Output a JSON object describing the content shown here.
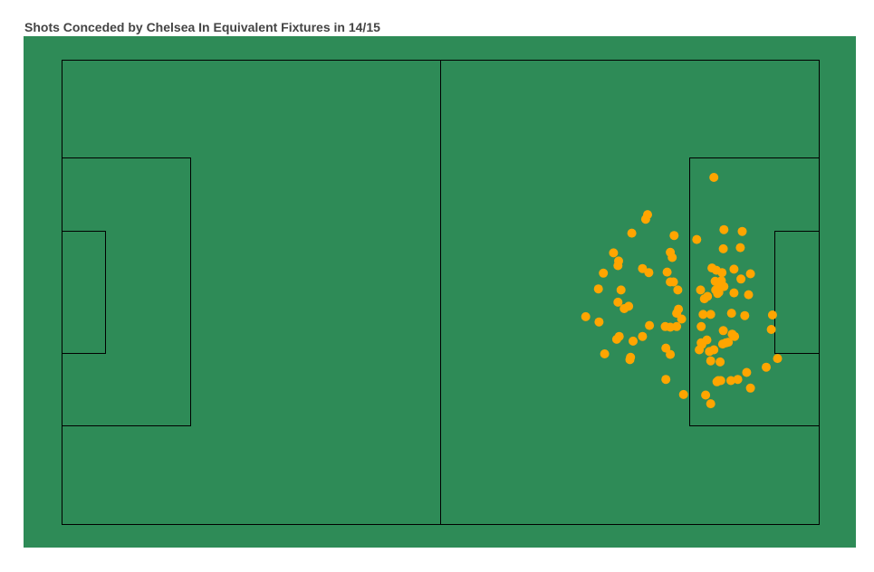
{
  "chart_data": {
    "type": "scatter",
    "title": "Shots Conceded by Chelsea In Equivalent Fixtures in 14/15",
    "xlabel": "",
    "ylabel": "",
    "xlim": [
      0,
      120
    ],
    "ylim": [
      0,
      80
    ],
    "grid": false,
    "legend": "none",
    "colors": {
      "pitch": "#2e8b57",
      "lines": "#000000",
      "shots": "#ffa500"
    },
    "series": [
      {
        "points": [
          [
            103.3,
            59.8
          ],
          [
            92.8,
            53.4
          ],
          [
            92.5,
            52.6
          ],
          [
            104.9,
            50.8
          ],
          [
            107.8,
            50.5
          ],
          [
            90.3,
            50.2
          ],
          [
            97.0,
            49.8
          ],
          [
            100.6,
            49.1
          ],
          [
            107.5,
            47.7
          ],
          [
            104.8,
            47.5
          ],
          [
            87.4,
            46.8
          ],
          [
            96.4,
            46.9
          ],
          [
            96.7,
            46.0
          ],
          [
            88.2,
            45.4
          ],
          [
            88.1,
            44.6
          ],
          [
            106.5,
            44.0
          ],
          [
            103.0,
            44.2
          ],
          [
            103.7,
            43.8
          ],
          [
            92.0,
            44.1
          ],
          [
            95.9,
            43.5
          ],
          [
            109.1,
            43.2
          ],
          [
            104.6,
            43.4
          ],
          [
            85.8,
            43.3
          ],
          [
            93.0,
            43.4
          ],
          [
            107.6,
            42.3
          ],
          [
            103.5,
            41.9
          ],
          [
            104.5,
            42.0
          ],
          [
            104.3,
            41.3
          ],
          [
            96.4,
            41.8
          ],
          [
            96.9,
            41.8
          ],
          [
            104.9,
            41.0
          ],
          [
            103.6,
            40.4
          ],
          [
            85.0,
            40.6
          ],
          [
            88.6,
            40.4
          ],
          [
            97.6,
            40.4
          ],
          [
            101.2,
            40.4
          ],
          [
            104.1,
            40.0
          ],
          [
            106.5,
            39.9
          ],
          [
            108.8,
            39.6
          ],
          [
            102.3,
            39.3
          ],
          [
            88.1,
            38.3
          ],
          [
            89.8,
            37.6
          ],
          [
            101.8,
            38.9
          ],
          [
            103.9,
            39.8
          ],
          [
            89.1,
            37.2
          ],
          [
            97.7,
            37.1
          ],
          [
            97.4,
            36.4
          ],
          [
            83.0,
            35.8
          ],
          [
            101.6,
            36.2
          ],
          [
            102.8,
            36.2
          ],
          [
            106.1,
            36.4
          ],
          [
            108.2,
            36.0
          ],
          [
            112.6,
            36.1
          ],
          [
            85.1,
            34.9
          ],
          [
            98.2,
            35.4
          ],
          [
            97.4,
            34.1
          ],
          [
            93.1,
            34.3
          ],
          [
            96.4,
            34.0
          ],
          [
            95.6,
            34.1
          ],
          [
            112.4,
            33.6
          ],
          [
            101.3,
            34.1
          ],
          [
            104.8,
            33.4
          ],
          [
            88.3,
            32.4
          ],
          [
            106.2,
            32.8
          ],
          [
            106.6,
            32.4
          ],
          [
            102.2,
            31.8
          ],
          [
            92.0,
            32.4
          ],
          [
            87.9,
            31.9
          ],
          [
            105.6,
            31.4
          ],
          [
            105.2,
            31.3
          ],
          [
            90.5,
            31.6
          ],
          [
            104.7,
            31.1
          ],
          [
            101.3,
            31.3
          ],
          [
            101.4,
            31.0
          ],
          [
            95.7,
            30.4
          ],
          [
            101.0,
            30.1
          ],
          [
            103.3,
            30.1
          ],
          [
            102.6,
            29.8
          ],
          [
            86.0,
            29.4
          ],
          [
            90.1,
            28.8
          ],
          [
            90.0,
            28.4
          ],
          [
            113.4,
            28.6
          ],
          [
            102.8,
            28.2
          ],
          [
            104.3,
            28.0
          ],
          [
            96.4,
            29.3
          ],
          [
            111.6,
            27.1
          ],
          [
            95.7,
            25.0
          ],
          [
            108.5,
            26.2
          ],
          [
            106.0,
            24.8
          ],
          [
            107.1,
            25.0
          ],
          [
            104.0,
            24.8
          ],
          [
            102.8,
            20.8
          ],
          [
            104.4,
            24.8
          ],
          [
            102.0,
            22.3
          ],
          [
            103.8,
            24.6
          ],
          [
            98.5,
            22.4
          ],
          [
            109.1,
            23.5
          ]
        ]
      }
    ]
  }
}
